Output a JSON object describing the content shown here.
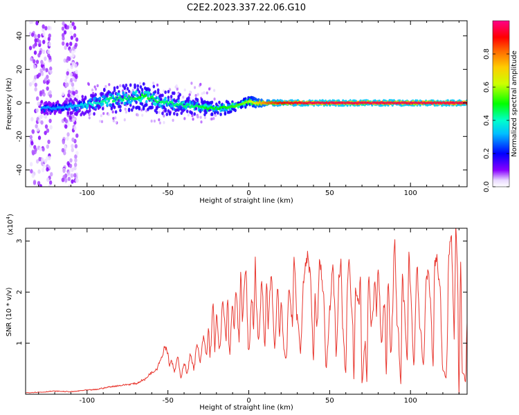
{
  "figure": {
    "title": "C2E2.2023.337.22.06.G10"
  },
  "chart_data": [
    {
      "type": "heatmap",
      "xlabel": "Height of straight line (km)",
      "ylabel": "Frequency (Hz)",
      "xlim": [
        -138,
        135
      ],
      "ylim": [
        -50,
        49
      ],
      "xticks": [
        -100,
        -50,
        0,
        50,
        100
      ],
      "yticks": [
        -40,
        -20,
        0,
        20,
        40
      ],
      "xtick_labels": [
        "-100",
        "-50",
        "0",
        "50",
        "100"
      ],
      "ytick_labels": [
        "-40",
        "-20",
        "0",
        "20",
        "40"
      ],
      "colorbar": {
        "label": "Normalized spectral amplitude",
        "range": [
          0,
          1
        ],
        "ticks": [
          0.0,
          0.2,
          0.4,
          0.6,
          0.8
        ],
        "tick_labels": [
          "0.0",
          "0.2",
          "0.4",
          "0.6",
          "0.8"
        ],
        "colormap": [
          "#ffffff",
          "#8800ff",
          "#0000ff",
          "#00ffff",
          "#00ff00",
          "#ffff00",
          "#ff8800",
          "#ff0000",
          "#ff0088"
        ]
      },
      "ridge": {
        "x": [
          -124,
          -115,
          -105,
          -95,
          -85,
          -75,
          -65,
          -55,
          -45,
          -35,
          -25,
          -15,
          -5,
          0,
          5,
          10,
          20,
          40,
          60,
          80,
          100,
          120,
          135
        ],
        "freq": [
          -3,
          -3,
          -2,
          0,
          2,
          3,
          4,
          1,
          -1,
          -2,
          -3,
          -3,
          -1,
          1,
          0,
          0,
          0,
          0,
          0,
          0,
          0,
          0,
          0
        ],
        "spread": [
          3,
          3,
          4,
          5,
          6,
          6,
          6,
          6,
          5,
          4,
          3,
          3,
          2,
          2,
          2,
          1,
          1,
          1,
          1,
          1,
          1,
          1,
          1
        ],
        "amplitude": [
          0.3,
          0.3,
          0.35,
          0.4,
          0.45,
          0.45,
          0.5,
          0.45,
          0.45,
          0.45,
          0.5,
          0.5,
          0.55,
          0.6,
          0.7,
          0.8,
          0.9,
          0.95,
          0.95,
          0.95,
          0.95,
          0.95,
          0.95
        ]
      }
    },
    {
      "type": "line",
      "xlabel": "Height of straight line (km)",
      "ylabel": "SNR (10 * v/v)",
      "yscale_label": "(x10",
      "yscale_exponent": "4",
      "xlim": [
        -138,
        135
      ],
      "ylim": [
        0,
        32500
      ],
      "xticks": [
        -100,
        -50,
        0,
        50,
        100
      ],
      "yticks": [
        10000,
        20000,
        30000
      ],
      "xtick_labels": [
        "-100",
        "-50",
        "0",
        "50",
        "100"
      ],
      "ytick_labels": [
        "1",
        "2",
        "3"
      ],
      "color": "#e8362e",
      "series": [
        {
          "x": [
            -138,
            -130,
            -120,
            -110,
            -100,
            -95,
            -90,
            -85,
            -80,
            -75,
            -70,
            -65,
            -60,
            -57,
            -55,
            -53,
            -52,
            -50,
            -49,
            -48,
            -46,
            -44,
            -42,
            -40,
            -38,
            -36,
            -34,
            -32,
            -30,
            -28,
            -26,
            -25,
            -24,
            -22,
            -21,
            -20,
            -18,
            -16,
            -14,
            -13,
            -12,
            -10,
            -9,
            -8,
            -6,
            -5,
            -4,
            -2,
            0,
            2,
            3,
            4,
            5,
            6,
            8,
            10,
            11,
            12,
            14,
            15,
            16,
            18,
            19,
            20,
            22,
            23,
            25,
            27,
            28,
            30,
            32,
            34,
            35,
            36,
            38,
            39,
            40,
            41,
            42,
            44,
            46,
            48,
            49,
            50,
            52,
            53,
            54,
            56,
            57,
            58,
            60,
            61,
            62,
            64,
            65,
            66,
            68,
            69,
            70,
            72,
            73,
            74,
            76,
            78,
            79,
            80,
            82,
            84,
            85,
            86,
            88,
            89,
            90,
            92,
            94,
            95,
            96,
            98,
            99,
            100,
            102,
            104,
            106,
            108,
            110,
            111,
            112,
            114,
            115,
            116,
            118,
            120,
            122,
            124,
            125,
            126,
            127,
            128,
            129,
            130,
            131,
            132,
            133,
            134,
            135
          ],
          "values": [
            300,
            400,
            600,
            500,
            800,
            900,
            1200,
            1500,
            1700,
            1900,
            2100,
            2800,
            4200,
            5000,
            6500,
            8000,
            9500,
            8200,
            5500,
            6800,
            4500,
            7000,
            3500,
            6000,
            4200,
            7800,
            5200,
            9500,
            6500,
            11000,
            7500,
            13000,
            8000,
            17000,
            9000,
            15000,
            8500,
            18000,
            11000,
            19000,
            8000,
            17500,
            12000,
            20500,
            11000,
            23000,
            15000,
            25000,
            8000,
            19000,
            13000,
            25800,
            16000,
            10000,
            21000,
            9500,
            22000,
            14000,
            24000,
            15500,
            9000,
            21500,
            11000,
            18000,
            8500,
            6000,
            21000,
            14000,
            26000,
            15000,
            9000,
            22500,
            25000,
            27000,
            24500,
            15000,
            7000,
            19000,
            12500,
            26000,
            20000,
            5500,
            10500,
            17000,
            25000,
            18000,
            7500,
            23500,
            25500,
            13000,
            4000,
            21000,
            25500,
            15500,
            4000,
            20500,
            17500,
            22500,
            2500,
            10000,
            2800,
            23000,
            13500,
            21000,
            16000,
            25500,
            10500,
            18500,
            3500,
            22000,
            7500,
            17500,
            30000,
            14000,
            2500,
            22500,
            18000,
            6000,
            28500,
            20000,
            6500,
            24500,
            13000,
            6000,
            23000,
            25000,
            19500,
            6000,
            25500,
            27000,
            21500,
            5000,
            3000,
            29000,
            32000,
            22500,
            12000,
            31500,
            26000,
            0,
            26000,
            4500,
            4000,
            2000,
            14000
          ]
        }
      ]
    }
  ]
}
